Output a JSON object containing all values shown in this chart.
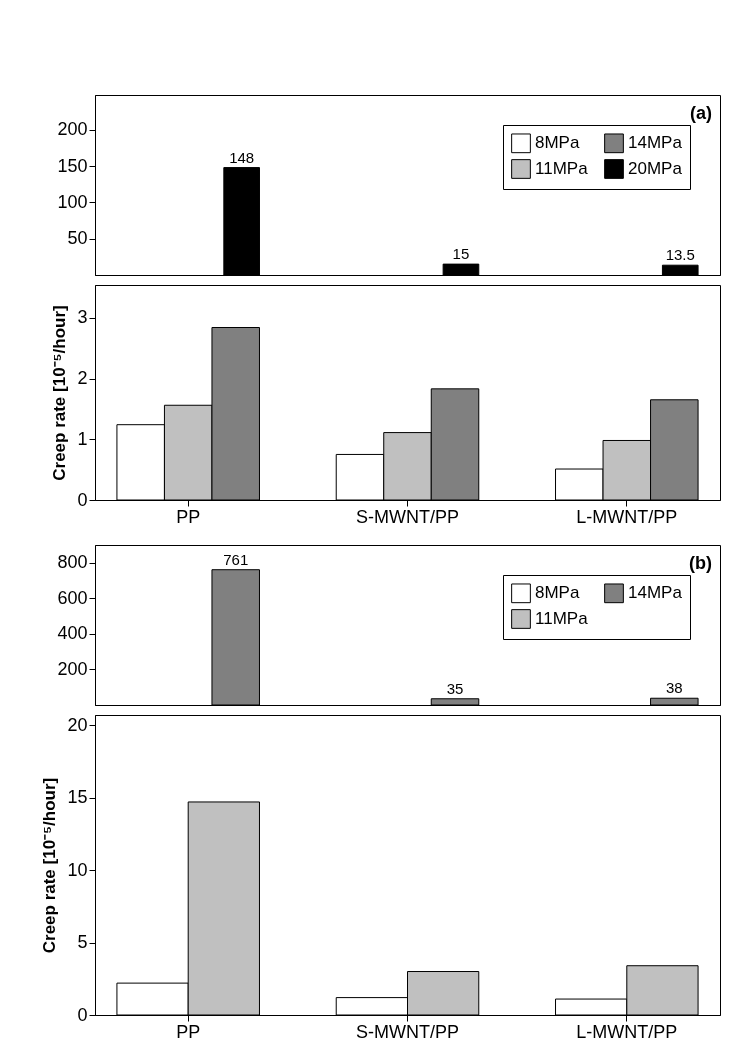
{
  "chart_data": [
    {
      "type": "bar",
      "categories": [
        null,
        null,
        null
      ],
      "series": [
        {
          "name": "8MPa",
          "color": "#ffffff",
          "values": [
            null,
            null,
            null
          ]
        },
        {
          "name": "11MPa",
          "color": "#c0c0c0",
          "values": [
            null,
            null,
            null
          ]
        },
        {
          "name": "14MPa",
          "color": "#808080",
          "values": [
            null,
            null,
            null
          ]
        },
        {
          "name": "20MPa",
          "color": "#000000",
          "values": [
            148,
            15,
            13.5
          ]
        }
      ],
      "ylim": [
        0,
        248
      ],
      "yticks": [
        50,
        100,
        150,
        200
      ],
      "data_labels": true,
      "legend": "top right",
      "tick_labels": "y",
      "annotations": [
        "(a)"
      ]
    },
    {
      "type": "bar",
      "categories": [
        "PP",
        "S-MWNT/PP",
        "L-MWNT/PP"
      ],
      "ylabel": "Creep rate [10⁻⁵/hour]",
      "series": [
        {
          "color": "#ffffff",
          "values": [
            1.24,
            0.75,
            0.51
          ]
        },
        {
          "color": "#c0c0c0",
          "values": [
            1.56,
            1.11,
            0.98
          ]
        },
        {
          "color": "#808080",
          "values": [
            2.84,
            1.83,
            1.65
          ]
        }
      ],
      "ylim": [
        0,
        3.54
      ],
      "yticks": [
        0,
        1,
        2,
        3
      ]
    },
    {
      "type": "bar",
      "categories": [
        null,
        null,
        null
      ],
      "series": [
        {
          "name": "8MPa",
          "color": "#ffffff",
          "values": [
            null,
            null,
            null
          ]
        },
        {
          "name": "11MPa",
          "color": "#c0c0c0",
          "values": [
            null,
            null,
            null
          ]
        },
        {
          "name": "14MPa",
          "color": "#808080",
          "values": [
            761,
            35,
            38
          ]
        }
      ],
      "ylim": [
        0,
        900
      ],
      "yticks": [
        200,
        400,
        600,
        800
      ],
      "data_labels": true,
      "legend": "top right",
      "tick_labels": "y",
      "annotations": [
        "(b)"
      ]
    },
    {
      "type": "bar",
      "categories": [
        "PP",
        "S-MWNT/PP",
        "L-MWNT/PP"
      ],
      "ylabel": "Creep rate [10⁻⁵/hour]",
      "series": [
        {
          "color": "#ffffff",
          "values": [
            2.2,
            1.2,
            1.1
          ]
        },
        {
          "color": "#c0c0c0",
          "values": [
            14.7,
            3.0,
            3.4
          ]
        }
      ],
      "ylim": [
        0,
        20.7
      ],
      "yticks": [
        0,
        5,
        10,
        15,
        20
      ]
    }
  ]
}
